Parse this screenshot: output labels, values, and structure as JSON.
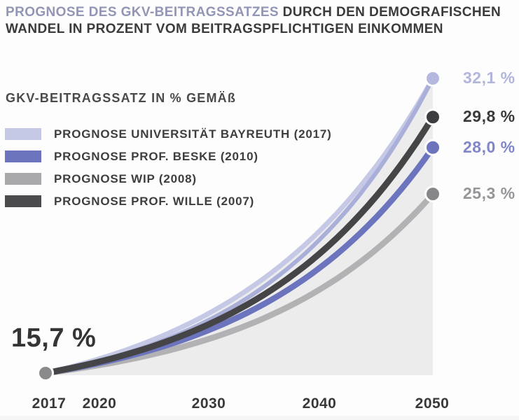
{
  "title": {
    "line1_accent": "PROGNOSE DES GKV-BEITRAGSSATZES",
    "line1_rest": " DURCH DEN DEMOGRAFISCHEN",
    "line2": "WANDEL IN PROZENT VOM BEITRAGSPFLICHTIGEN EINKOMMEN"
  },
  "colors": {
    "accent": "#9196b6",
    "text_dark": "#3b3b3d",
    "area_fill": "#ececec",
    "start_dot": "#8a8a8c"
  },
  "legend": {
    "header": "GKV-BEITRAGSSATZ IN % GEMÄß"
  },
  "chart_data": {
    "type": "line",
    "title": "PROGNOSE DES GKV-BEITRAGSSATZES DURCH DEN DEMOGRAFISCHEN WANDEL IN PROZENT VOM BEITRAGSPFLICHTIGEN EINKOMMEN",
    "ylabel": "GKV-Beitragssatz in % gemäß Prognose",
    "xlabel": "",
    "grid": false,
    "legend_position": "top-left",
    "x_start": 2017,
    "x_end": 2050,
    "x_ticks": [
      "2017",
      "2020",
      "2030",
      "2040",
      "2050"
    ],
    "start_value": 15.7,
    "start_label": "15,7 %",
    "series": [
      {
        "name": "PROGNOSE UNIVERSITÄT BAYREUTH (2017)",
        "value_2017": 15.7,
        "value_2050": 32.1,
        "end_label": "32,1 %",
        "color": "#c6c9e6",
        "color2": "#a9afd8",
        "dot_color": "#b4b8df",
        "label_color": "#b2b6dc",
        "swatch": "#c6c9e6"
      },
      {
        "name": "PROGNOSE PROF. BESKE (2010)",
        "value_2017": 15.7,
        "value_2050": 28.0,
        "end_label": "28,0 %",
        "color": "#6b74bd",
        "dot_color": "#6b74bd",
        "label_color": "#8086c8",
        "swatch": "#6b74bd"
      },
      {
        "name": "PROGNOSE WIP (2008)",
        "value_2017": 15.7,
        "value_2050": 25.3,
        "end_label": "25,3 %",
        "color": "#b2b2b4",
        "dot_color": "#87878a",
        "label_color": "#96969a",
        "swatch": "#a9a9ab"
      },
      {
        "name": "PROGNOSE PROF. WILLE (2007)",
        "value_2017": 15.7,
        "value_2050": 29.8,
        "end_label": "29,8 %",
        "color": "#454547",
        "dot_color": "#3d3d3f",
        "label_color": "#3a3a3c",
        "swatch": "#4b4b4d"
      }
    ]
  }
}
